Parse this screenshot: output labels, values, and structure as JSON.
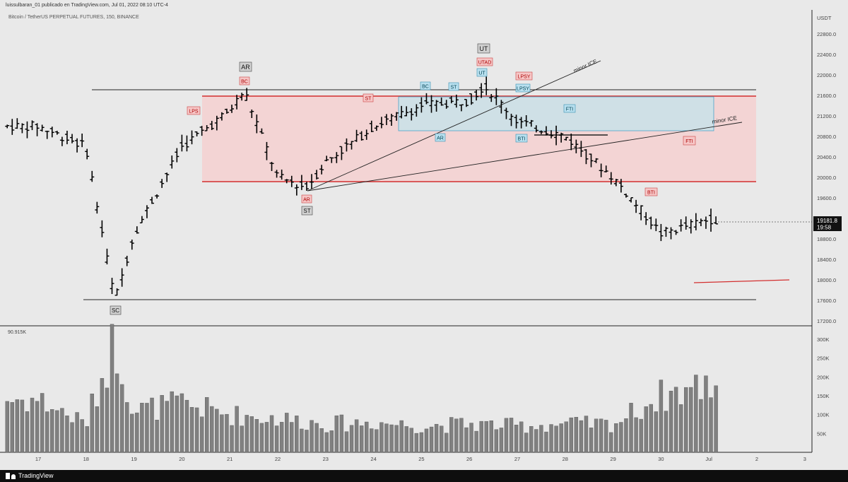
{
  "header": {
    "publisher_line": "luissulbaran_01 publicado en TradingView.com, Jul 01, 2022 08:10 UTC-4",
    "symbol_line": "Bitcoin / TetherUS PERPETUAL FUTURES, 150, BINANCE",
    "currency": "USDT"
  },
  "price_axis": {
    "ticks": [
      "22800.0",
      "22400.0",
      "22000.0",
      "21600.0",
      "21200.0",
      "20800.0",
      "20400.0",
      "20000.0",
      "19600.0",
      "19200.0",
      "18800.0",
      "18400.0",
      "18000.0",
      "17600.0",
      "17200.0"
    ],
    "last_price": "19181.8",
    "countdown": "19:58"
  },
  "volume_axis": {
    "label": "90.915K",
    "ticks": [
      "300K",
      "250K",
      "200K",
      "150K",
      "100K",
      "50K"
    ]
  },
  "time_axis": {
    "ticks": [
      "17",
      "18",
      "19",
      "20",
      "21",
      "22",
      "23",
      "24",
      "25",
      "26",
      "27",
      "28",
      "29",
      "30",
      "Jul",
      "2",
      "3"
    ]
  },
  "annotations": {
    "labels": [
      "SC",
      "AR",
      "BC",
      "LPS",
      "AR",
      "ST",
      "ST",
      "BC",
      "ST",
      "AR",
      "UT",
      "UTAD",
      "UT",
      "LPSY",
      "LPSY",
      "BTI",
      "FTI",
      "BTI",
      "FTI"
    ],
    "trendline_labels": [
      "minor ICE",
      "minor ICE"
    ]
  },
  "colors": {
    "background": "#e9e9e9",
    "candle": "#000000",
    "volume": "#808080",
    "range_fill": "#f3d4d4",
    "range_line": "#d32f2f",
    "inner_box_fill": "#cfe0e6",
    "inner_box_line": "#4aa3c8",
    "label_red_bg": "#f6c6c6",
    "label_blue_bg": "#b9e0ef",
    "label_gray_bg": "#d0d0d0"
  },
  "footer": {
    "brand": "TradingView"
  },
  "chart_data": {
    "type": "bar",
    "title": "Bitcoin / TetherUS PERPETUAL FUTURES, 150, BINANCE",
    "ylabel": "USDT",
    "ylim": [
      17200,
      23000
    ],
    "x": [
      "17",
      "18",
      "19",
      "20",
      "21",
      "22",
      "23",
      "24",
      "25",
      "26",
      "27",
      "28",
      "29",
      "30",
      "Jul"
    ],
    "series": [
      {
        "name": "price_path",
        "x": [
          "17",
          "18",
          "18.6",
          "19",
          "20",
          "21",
          "21.3",
          "22",
          "22.6",
          "23",
          "24",
          "25",
          "26",
          "26.3",
          "27",
          "28",
          "29",
          "30",
          "Jul"
        ],
        "values": [
          21000,
          20600,
          17600,
          18900,
          20600,
          21300,
          21700,
          20000,
          19800,
          20300,
          21000,
          21400,
          21500,
          21800,
          21100,
          20800,
          20000,
          18900,
          19180
        ]
      },
      {
        "name": "volume_k",
        "x": [
          "17",
          "18",
          "18.6",
          "19",
          "20",
          "21",
          "22",
          "23",
          "24",
          "25",
          "26",
          "27",
          "28",
          "29",
          "30",
          "Jul"
        ],
        "values": [
          140,
          75,
          300,
          110,
          130,
          100,
          90,
          75,
          80,
          70,
          75,
          70,
          75,
          75,
          150,
          180
        ]
      }
    ],
    "levels": {
      "range_top": 21560,
      "range_bottom": 19920,
      "upper_line": 21720,
      "lower_line": 17640,
      "inner_box_top": 21540,
      "inner_box_bottom": 20900
    }
  }
}
